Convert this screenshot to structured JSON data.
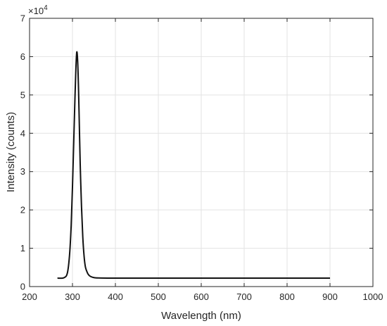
{
  "chart_data": {
    "type": "line",
    "title": "",
    "xlabel": "Wavelength (nm)",
    "ylabel": "Intensity (counts)",
    "xlim": [
      200,
      1000
    ],
    "ylim": [
      0,
      70000
    ],
    "x_ticks": [
      200,
      300,
      400,
      500,
      600,
      700,
      800,
      900,
      1000
    ],
    "y_ticks": [
      0,
      10000,
      20000,
      30000,
      40000,
      50000,
      60000,
      70000
    ],
    "y_tick_labels": [
      "0",
      "1",
      "2",
      "3",
      "4",
      "5",
      "6",
      "7"
    ],
    "y_exponent_base": "×10",
    "y_exponent_power": "4",
    "grid": true,
    "series": [
      {
        "color": "#111111",
        "x": [
          265,
          280,
          288,
          293,
          297,
          300,
          303,
          306,
          308,
          310,
          312,
          314,
          316,
          318,
          321,
          324,
          327,
          330,
          334,
          338,
          343,
          350,
          360,
          400,
          500,
          600,
          700,
          800,
          900
        ],
        "y": [
          2200,
          2300,
          3500,
          8000,
          16000,
          26000,
          38000,
          50000,
          57000,
          61200,
          59000,
          52000,
          42000,
          32000,
          21000,
          13000,
          8000,
          5200,
          3800,
          3000,
          2600,
          2350,
          2250,
          2200,
          2200,
          2200,
          2200,
          2200,
          2200
        ]
      }
    ]
  }
}
